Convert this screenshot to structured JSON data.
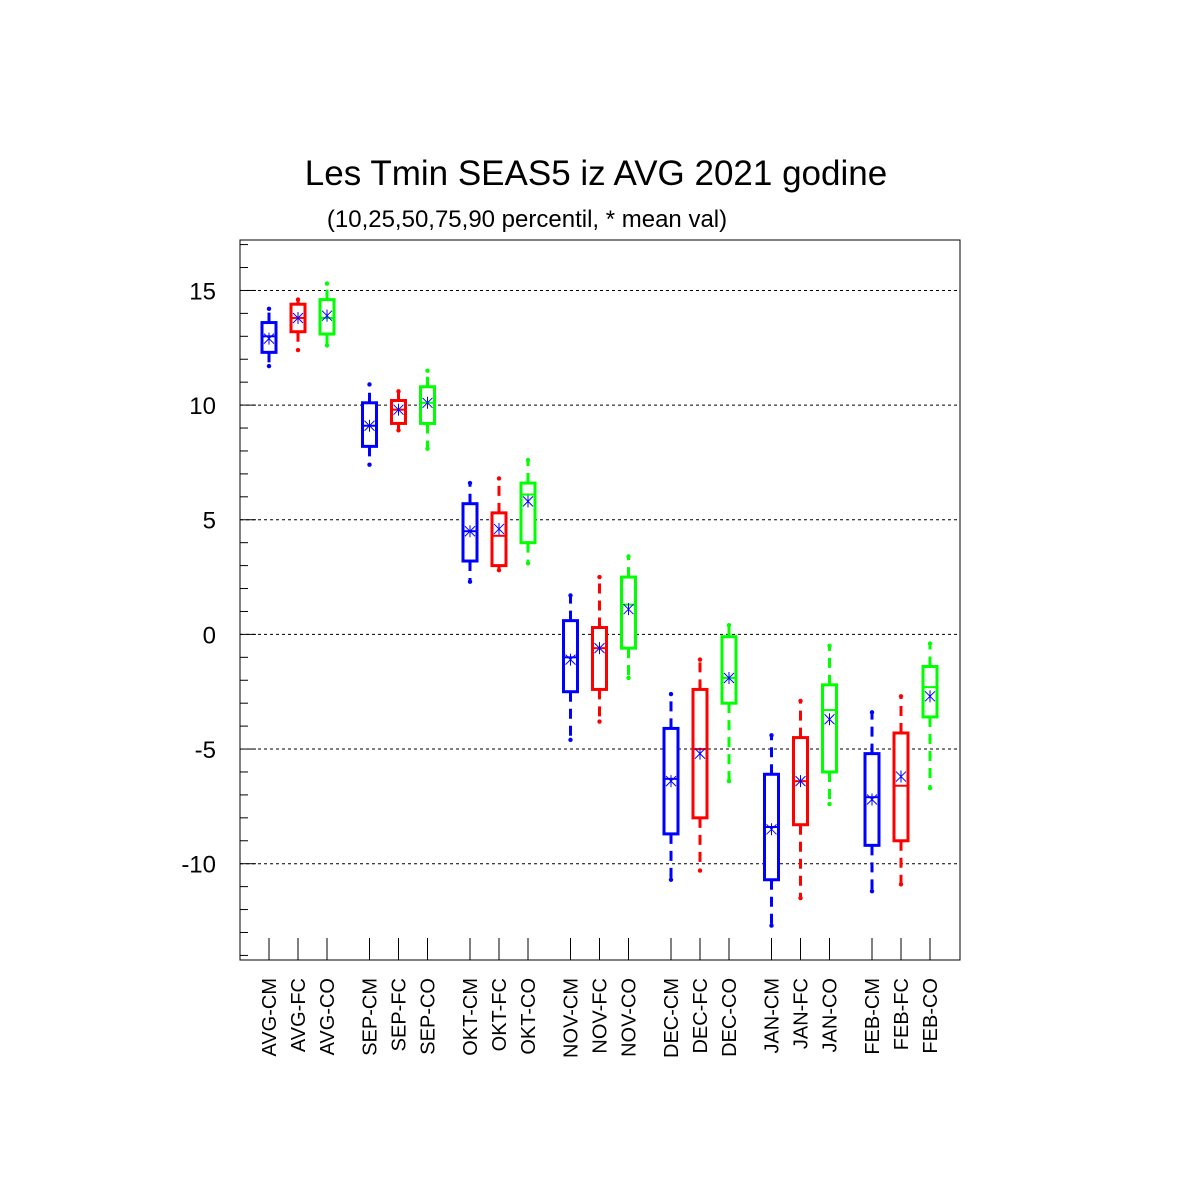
{
  "chart_data": {
    "type": "box",
    "title": "Les Tmin SEAS5 iz AVG 2021 godine",
    "subtitle": "(10,25,50,75,90 percentil, * mean val)",
    "ylim": [
      -14.2,
      17.2
    ],
    "yticks": [
      15,
      10,
      5,
      0,
      -5,
      -10
    ],
    "ytick_labels": [
      "15",
      "10",
      "5",
      "0",
      "-5",
      "-10"
    ],
    "grid": "dashed horizontal at major ticks",
    "colors": {
      "CM": "#0000ff",
      "FC": "#ff0000",
      "CO": "#00ff00",
      "mean_marker": "#0000ff"
    },
    "boxes": [
      {
        "label": "AVG-CM",
        "type": "CM",
        "p10": 11.7,
        "p25": 12.3,
        "p50": 13.0,
        "p75": 13.6,
        "p90": 14.2,
        "mean": 12.9
      },
      {
        "label": "AVG-FC",
        "type": "FC",
        "p10": 12.4,
        "p25": 13.2,
        "p50": 13.8,
        "p75": 14.4,
        "p90": 14.6,
        "mean": 13.8
      },
      {
        "label": "AVG-CO",
        "type": "CO",
        "p10": 12.6,
        "p25": 13.1,
        "p50": 13.8,
        "p75": 14.6,
        "p90": 15.3,
        "mean": 13.9
      },
      {
        "label": "SEP-CM",
        "type": "CM",
        "p10": 7.4,
        "p25": 8.2,
        "p50": 9.1,
        "p75": 10.1,
        "p90": 10.9,
        "mean": 9.1
      },
      {
        "label": "SEP-FC",
        "type": "FC",
        "p10": 8.9,
        "p25": 9.2,
        "p50": 9.8,
        "p75": 10.2,
        "p90": 10.6,
        "mean": 9.8
      },
      {
        "label": "SEP-CO",
        "type": "CO",
        "p10": 8.1,
        "p25": 9.2,
        "p50": 10.1,
        "p75": 10.8,
        "p90": 11.5,
        "mean": 10.1
      },
      {
        "label": "OKT-CM",
        "type": "CM",
        "p10": 2.3,
        "p25": 3.2,
        "p50": 4.5,
        "p75": 5.7,
        "p90": 6.6,
        "mean": 4.5
      },
      {
        "label": "OKT-FC",
        "type": "FC",
        "p10": 2.8,
        "p25": 3.0,
        "p50": 4.3,
        "p75": 5.3,
        "p90": 6.8,
        "mean": 4.6
      },
      {
        "label": "OKT-CO",
        "type": "CO",
        "p10": 3.1,
        "p25": 4.0,
        "p50": 6.1,
        "p75": 6.6,
        "p90": 7.6,
        "mean": 5.8
      },
      {
        "label": "NOV-CM",
        "type": "CM",
        "p10": -4.6,
        "p25": -2.5,
        "p50": -1.0,
        "p75": 0.6,
        "p90": 1.7,
        "mean": -1.1
      },
      {
        "label": "NOV-FC",
        "type": "FC",
        "p10": -3.8,
        "p25": -2.4,
        "p50": -0.6,
        "p75": 0.3,
        "p90": 2.5,
        "mean": -0.6
      },
      {
        "label": "NOV-CO",
        "type": "CO",
        "p10": -1.9,
        "p25": -0.6,
        "p50": 1.3,
        "p75": 2.5,
        "p90": 3.4,
        "mean": 1.1
      },
      {
        "label": "DEC-CM",
        "type": "CM",
        "p10": -10.7,
        "p25": -8.7,
        "p50": -6.3,
        "p75": -4.1,
        "p90": -2.6,
        "mean": -6.4
      },
      {
        "label": "DEC-FC",
        "type": "FC",
        "p10": -10.3,
        "p25": -8.0,
        "p50": -5.0,
        "p75": -2.4,
        "p90": -1.1,
        "mean": -5.2
      },
      {
        "label": "DEC-CO",
        "type": "CO",
        "p10": -6.4,
        "p25": -3.0,
        "p50": -1.9,
        "p75": -0.1,
        "p90": 0.4,
        "mean": -1.9
      },
      {
        "label": "JAN-CM",
        "type": "CM",
        "p10": -12.7,
        "p25": -10.7,
        "p50": -8.4,
        "p75": -6.1,
        "p90": -4.4,
        "mean": -8.5
      },
      {
        "label": "JAN-FC",
        "type": "FC",
        "p10": -11.5,
        "p25": -8.3,
        "p50": -6.4,
        "p75": -4.5,
        "p90": -2.9,
        "mean": -6.4
      },
      {
        "label": "JAN-CO",
        "type": "CO",
        "p10": -7.4,
        "p25": -6.0,
        "p50": -3.3,
        "p75": -2.2,
        "p90": -0.5,
        "mean": -3.7
      },
      {
        "label": "FEB-CM",
        "type": "CM",
        "p10": -11.2,
        "p25": -9.2,
        "p50": -7.1,
        "p75": -5.2,
        "p90": -3.4,
        "mean": -7.2
      },
      {
        "label": "FEB-FC",
        "type": "FC",
        "p10": -10.9,
        "p25": -9.0,
        "p50": -6.6,
        "p75": -4.3,
        "p90": -2.7,
        "mean": -6.2
      },
      {
        "label": "FEB-CO",
        "type": "CO",
        "p10": -6.7,
        "p25": -3.6,
        "p50": -2.3,
        "p75": -1.4,
        "p90": -0.4,
        "mean": -2.7
      }
    ]
  }
}
